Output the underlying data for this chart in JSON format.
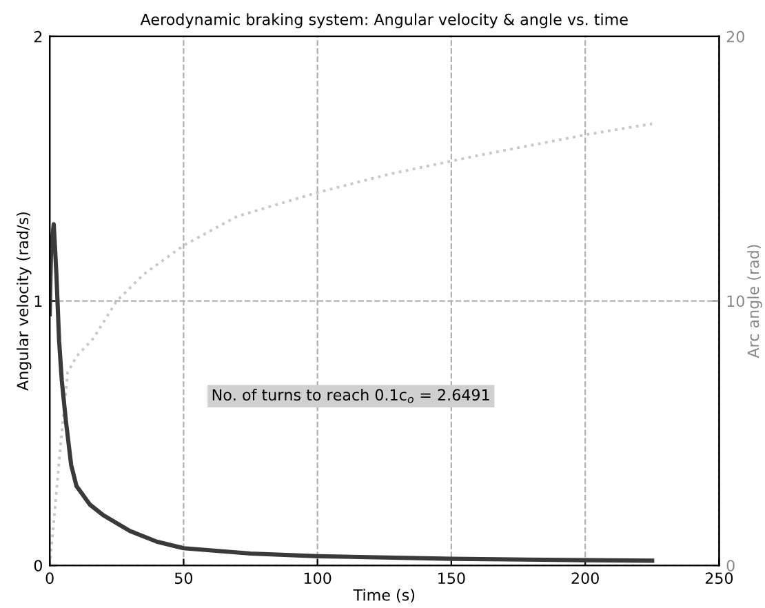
{
  "chart_data": {
    "type": "line",
    "title": "Aerodynamic braking system: Angular velocity & angle vs. time",
    "xlabel": "Time (s)",
    "ylabel": "Angular velocity (rad/s)",
    "y2label": "Arc angle (rad)",
    "annotations": [
      "No. of turns to reach 0.1c$_{o}$ = 2.6491"
    ],
    "xlim": [
      0,
      250
    ],
    "xticks": [
      0,
      50,
      100,
      150,
      200,
      250
    ],
    "ylim": [
      0,
      2
    ],
    "yticks": [
      0,
      1,
      2
    ],
    "y2lim": [
      0,
      20
    ],
    "y2ticks": [
      0,
      10,
      20
    ],
    "grid": true,
    "series": [
      {
        "color": "#3a3a3a",
        "line_style": "solid",
        "x": [
          0,
          0.5,
          1.5,
          2.5,
          3.5,
          4.5,
          6,
          8,
          10,
          15,
          20,
          30,
          40,
          50,
          75,
          100,
          150,
          200,
          225
        ],
        "values": [
          0.95,
          1.2,
          1.29,
          1.1,
          0.85,
          0.7,
          0.55,
          0.38,
          0.3,
          0.23,
          0.19,
          0.13,
          0.09,
          0.065,
          0.045,
          0.035,
          0.025,
          0.02,
          0.018
        ]
      },
      {
        "axis": "y2",
        "color": "#c8c8c8",
        "line_style": "dotted",
        "x": [
          0,
          2,
          4,
          6.7,
          10,
          16.4,
          25,
          35,
          50,
          70,
          100,
          127,
          160,
          201,
          225
        ],
        "values": [
          0,
          2.2,
          4.5,
          7.3,
          7.9,
          8.6,
          10,
          11,
          12.1,
          13.2,
          14.1,
          14.8,
          15.5,
          16.3,
          16.7
        ]
      }
    ]
  }
}
